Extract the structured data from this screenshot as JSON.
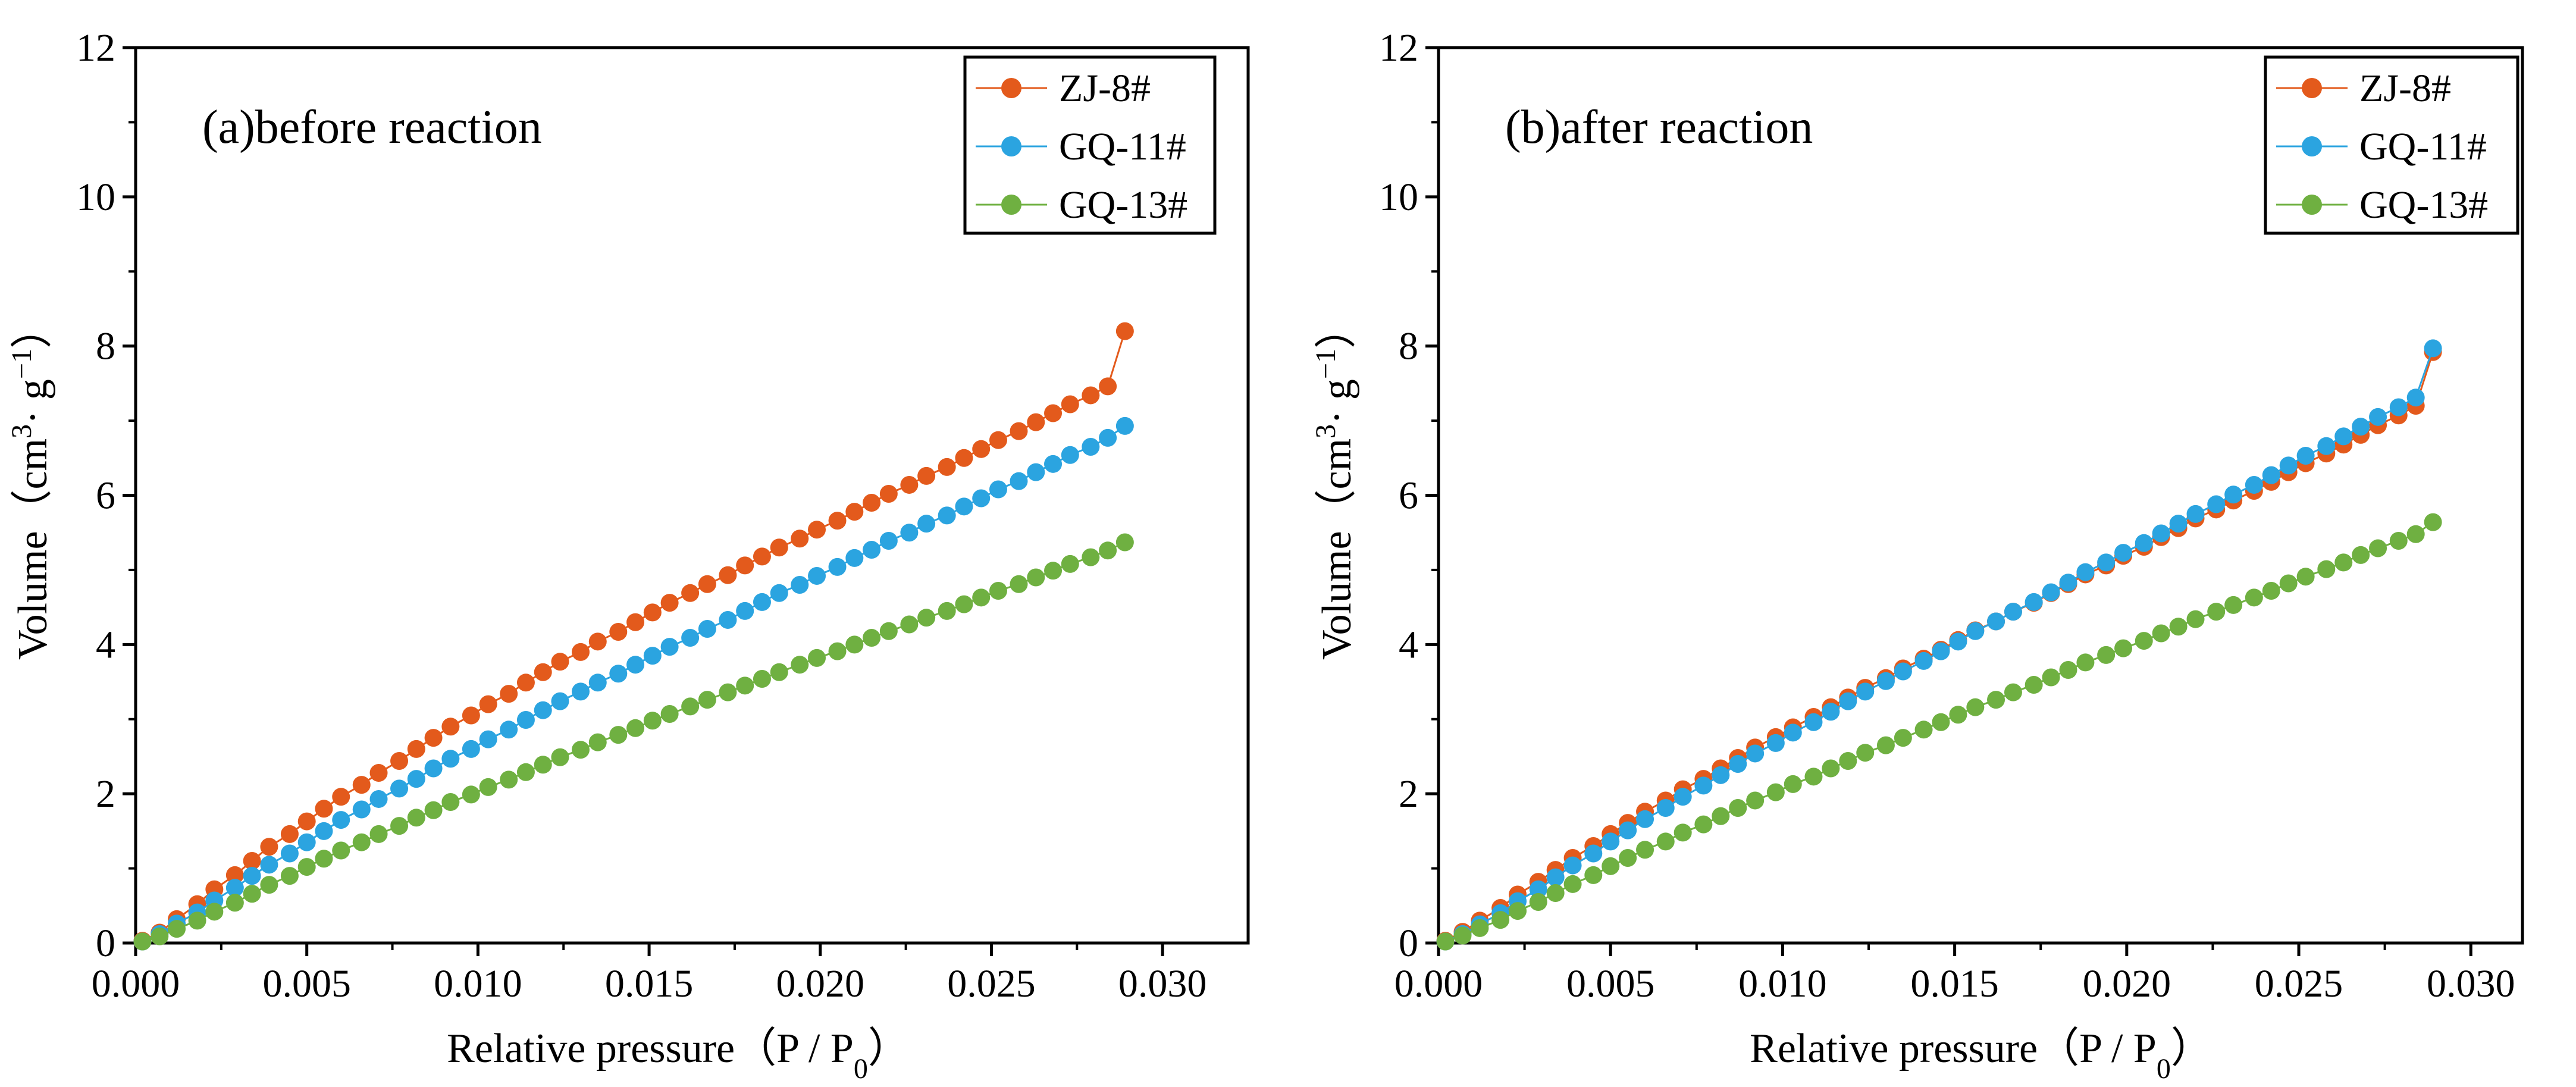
{
  "chart_data": [
    {
      "type": "scatter",
      "panel": "a",
      "annotation": "(a)before reaction",
      "xlabel": "Relative pressure（P / P",
      "xlabel_sub": "0",
      "xlabel_end": "）",
      "ylabel": "Volume（cm",
      "ylabel_sup": "3",
      "ylabel_mid": "· g",
      "ylabel_sup2": "−1",
      "ylabel_end": "）",
      "xlim": [
        0,
        0.0325
      ],
      "ylim": [
        0,
        12
      ],
      "xticks": [
        0,
        0.005,
        0.01,
        0.015,
        0.02,
        0.025,
        0.03
      ],
      "xtick_labels": [
        "0.000",
        "0.005",
        "0.010",
        "0.015",
        "0.020",
        "0.025",
        "0.030"
      ],
      "yticks": [
        0,
        2,
        4,
        6,
        8,
        10,
        12
      ],
      "ytick_labels": [
        "0",
        "2",
        "4",
        "6",
        "8",
        "10",
        "12"
      ],
      "legend_position": "top-right",
      "x": [
        0.0002,
        0.0007,
        0.0012,
        0.0018,
        0.0023,
        0.0029,
        0.0034,
        0.0039,
        0.0045,
        0.005,
        0.0055,
        0.006,
        0.0066,
        0.0071,
        0.0077,
        0.0082,
        0.0087,
        0.0092,
        0.0098,
        0.0103,
        0.0109,
        0.0114,
        0.0119,
        0.0124,
        0.013,
        0.0135,
        0.0141,
        0.0146,
        0.0151,
        0.0156,
        0.0162,
        0.0167,
        0.0173,
        0.0178,
        0.0183,
        0.0188,
        0.0194,
        0.0199,
        0.0205,
        0.021,
        0.0215,
        0.022,
        0.0226,
        0.0231,
        0.0237,
        0.0242,
        0.0247,
        0.0252,
        0.0258,
        0.0263,
        0.0268,
        0.0273,
        0.0279,
        0.0284,
        0.0289
      ],
      "series": [
        {
          "name": "ZJ-8#",
          "color": "#e35a1c",
          "values": [
            0.03,
            0.14,
            0.32,
            0.52,
            0.72,
            0.91,
            1.1,
            1.29,
            1.46,
            1.63,
            1.8,
            1.96,
            2.12,
            2.28,
            2.44,
            2.6,
            2.75,
            2.9,
            3.05,
            3.2,
            3.34,
            3.49,
            3.63,
            3.77,
            3.9,
            4.04,
            4.17,
            4.3,
            4.43,
            4.56,
            4.69,
            4.81,
            4.93,
            5.06,
            5.18,
            5.3,
            5.42,
            5.54,
            5.66,
            5.78,
            5.9,
            6.02,
            6.14,
            6.26,
            6.38,
            6.5,
            6.62,
            6.74,
            6.86,
            6.98,
            7.1,
            7.22,
            7.34,
            7.46,
            8.2
          ]
        },
        {
          "name": "GQ-11#",
          "color": "#2ba4e0",
          "values": [
            0.02,
            0.12,
            0.26,
            0.41,
            0.57,
            0.74,
            0.9,
            1.05,
            1.2,
            1.35,
            1.5,
            1.65,
            1.79,
            1.93,
            2.07,
            2.2,
            2.34,
            2.47,
            2.6,
            2.73,
            2.86,
            2.99,
            3.12,
            3.24,
            3.37,
            3.49,
            3.61,
            3.73,
            3.85,
            3.97,
            4.09,
            4.21,
            4.33,
            4.45,
            4.57,
            4.69,
            4.8,
            4.92,
            5.04,
            5.16,
            5.27,
            5.39,
            5.5,
            5.62,
            5.73,
            5.85,
            5.96,
            6.08,
            6.19,
            6.31,
            6.42,
            6.54,
            6.65,
            6.77,
            6.93
          ]
        },
        {
          "name": "GQ-13#",
          "color": "#6fb041",
          "values": [
            0.02,
            0.09,
            0.19,
            0.3,
            0.42,
            0.54,
            0.66,
            0.78,
            0.9,
            1.02,
            1.13,
            1.24,
            1.35,
            1.46,
            1.57,
            1.68,
            1.78,
            1.89,
            1.99,
            2.09,
            2.19,
            2.29,
            2.39,
            2.49,
            2.59,
            2.69,
            2.79,
            2.88,
            2.98,
            3.07,
            3.17,
            3.26,
            3.36,
            3.45,
            3.54,
            3.63,
            3.73,
            3.82,
            3.91,
            4.0,
            4.09,
            4.18,
            4.27,
            4.36,
            4.45,
            4.54,
            4.63,
            4.72,
            4.81,
            4.9,
            4.99,
            5.08,
            5.17,
            5.26,
            5.37
          ]
        }
      ]
    },
    {
      "type": "scatter",
      "panel": "b",
      "annotation": "(b)after reaction",
      "xlabel": "Relative pressure（P / P",
      "xlabel_sub": "0",
      "xlabel_end": "）",
      "ylabel": "Volume（cm",
      "ylabel_sup": "3",
      "ylabel_mid": "· g",
      "ylabel_sup2": "−1",
      "ylabel_end": "）",
      "xlim": [
        0,
        0.0315
      ],
      "ylim": [
        0,
        12
      ],
      "xticks": [
        0,
        0.005,
        0.01,
        0.015,
        0.02,
        0.025,
        0.03
      ],
      "xtick_labels": [
        "0.000",
        "0.005",
        "0.010",
        "0.015",
        "0.020",
        "0.025",
        "0.030"
      ],
      "yticks": [
        0,
        2,
        4,
        6,
        8,
        10,
        12
      ],
      "ytick_labels": [
        "0",
        "2",
        "4",
        "6",
        "8",
        "10",
        "12"
      ],
      "legend_position": "top-right",
      "x": [
        0.0002,
        0.0007,
        0.0012,
        0.0018,
        0.0023,
        0.0029,
        0.0034,
        0.0039,
        0.0045,
        0.005,
        0.0055,
        0.006,
        0.0066,
        0.0071,
        0.0077,
        0.0082,
        0.0087,
        0.0092,
        0.0098,
        0.0103,
        0.0109,
        0.0114,
        0.0119,
        0.0124,
        0.013,
        0.0135,
        0.0141,
        0.0146,
        0.0151,
        0.0156,
        0.0162,
        0.0167,
        0.0173,
        0.0178,
        0.0183,
        0.0188,
        0.0194,
        0.0199,
        0.0205,
        0.021,
        0.0215,
        0.022,
        0.0226,
        0.0231,
        0.0237,
        0.0242,
        0.0247,
        0.0252,
        0.0258,
        0.0263,
        0.0268,
        0.0273,
        0.0279,
        0.0284,
        0.0289
      ],
      "series": [
        {
          "name": "ZJ-8#",
          "color": "#e35a1c",
          "values": [
            0.03,
            0.15,
            0.3,
            0.47,
            0.65,
            0.82,
            0.98,
            1.14,
            1.3,
            1.46,
            1.61,
            1.76,
            1.91,
            2.06,
            2.2,
            2.34,
            2.48,
            2.62,
            2.76,
            2.89,
            3.03,
            3.16,
            3.29,
            3.42,
            3.55,
            3.68,
            3.81,
            3.93,
            4.06,
            4.19,
            4.31,
            4.44,
            4.56,
            4.69,
            4.81,
            4.94,
            5.06,
            5.19,
            5.31,
            5.44,
            5.56,
            5.69,
            5.81,
            5.93,
            6.06,
            6.18,
            6.31,
            6.43,
            6.56,
            6.68,
            6.81,
            6.94,
            7.07,
            7.2,
            7.92
          ]
        },
        {
          "name": "GQ-11#",
          "color": "#2ba4e0",
          "values": [
            0.02,
            0.12,
            0.25,
            0.4,
            0.56,
            0.72,
            0.88,
            1.04,
            1.2,
            1.36,
            1.51,
            1.66,
            1.81,
            1.96,
            2.11,
            2.25,
            2.4,
            2.54,
            2.68,
            2.82,
            2.96,
            3.1,
            3.24,
            3.37,
            3.51,
            3.64,
            3.78,
            3.91,
            4.04,
            4.18,
            4.31,
            4.44,
            4.57,
            4.7,
            4.83,
            4.97,
            5.1,
            5.23,
            5.36,
            5.49,
            5.62,
            5.75,
            5.88,
            6.01,
            6.14,
            6.27,
            6.4,
            6.53,
            6.66,
            6.79,
            6.92,
            7.05,
            7.18,
            7.31,
            7.97
          ]
        },
        {
          "name": "GQ-13#",
          "color": "#6fb041",
          "values": [
            0.02,
            0.1,
            0.2,
            0.31,
            0.43,
            0.55,
            0.67,
            0.79,
            0.91,
            1.03,
            1.14,
            1.25,
            1.36,
            1.48,
            1.59,
            1.7,
            1.81,
            1.91,
            2.02,
            2.13,
            2.23,
            2.34,
            2.44,
            2.55,
            2.65,
            2.75,
            2.86,
            2.96,
            3.06,
            3.16,
            3.26,
            3.36,
            3.46,
            3.56,
            3.66,
            3.76,
            3.86,
            3.95,
            4.05,
            4.15,
            4.24,
            4.34,
            4.44,
            4.53,
            4.63,
            4.72,
            4.82,
            4.91,
            5.01,
            5.1,
            5.2,
            5.29,
            5.39,
            5.48,
            5.64
          ]
        }
      ]
    }
  ]
}
